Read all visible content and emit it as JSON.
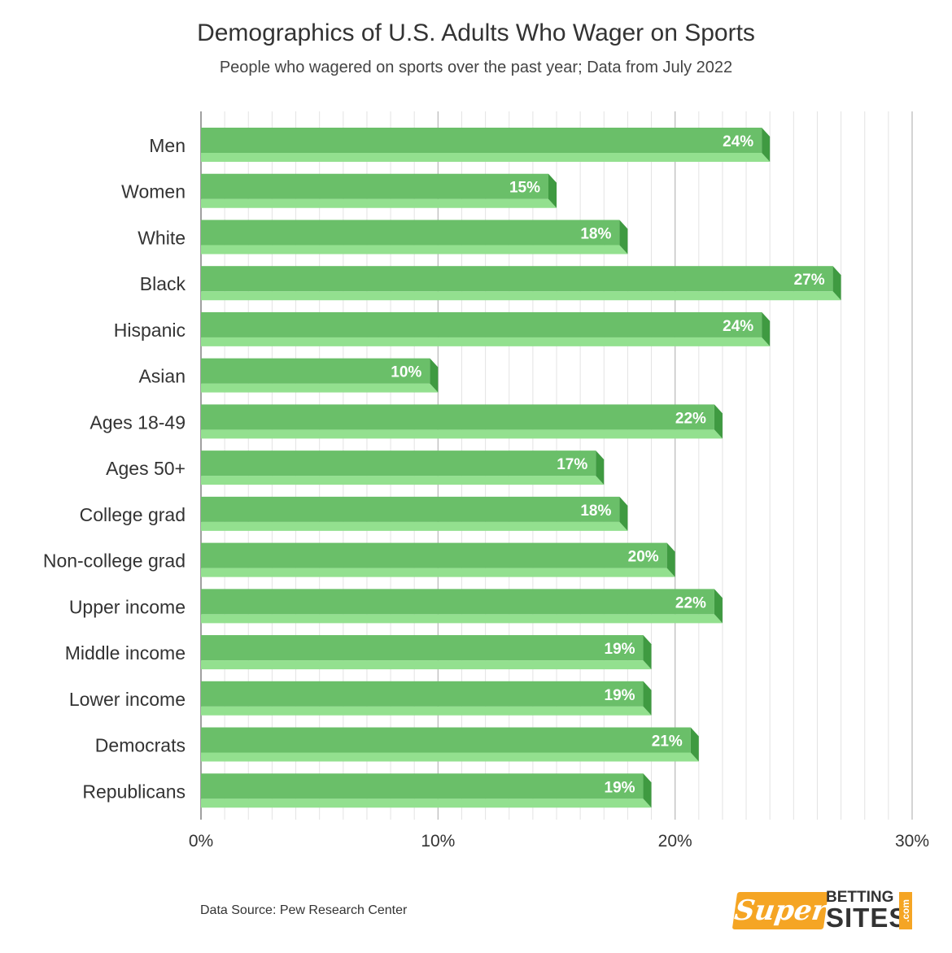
{
  "chart_data": {
    "type": "bar",
    "orientation": "horizontal",
    "title": "Demographics of U.S. Adults Who Wager on Sports",
    "subtitle": "People who wagered on sports over the past year; Data from July 2022",
    "categories": [
      "Men",
      "Women",
      "White",
      "Black",
      "Hispanic",
      "Asian",
      "Ages 18-49",
      "Ages 50+",
      "College grad",
      "Non-college grad",
      "Upper income",
      "Middle income",
      "Lower income",
      "Democrats",
      "Republicans"
    ],
    "values": [
      24,
      15,
      18,
      27,
      24,
      10,
      22,
      17,
      18,
      20,
      22,
      19,
      19,
      21,
      19
    ],
    "value_labels": [
      "24%",
      "15%",
      "18%",
      "27%",
      "24%",
      "10%",
      "22%",
      "17%",
      "18%",
      "20%",
      "22%",
      "19%",
      "19%",
      "21%",
      "19%"
    ],
    "xlim": [
      0,
      30
    ],
    "x_ticks": [
      0,
      10,
      20,
      30
    ],
    "x_tick_labels": [
      "0%",
      "10%",
      "20%",
      "30%"
    ],
    "grid": true,
    "legend": "none"
  },
  "footer": {
    "source": "Data Source: Pew Research Center"
  },
  "logo": {
    "super": "Super",
    "betting": "BETTING",
    "sites": "SITES",
    "com": ".com"
  },
  "colors": {
    "bar_top": "#6abf69",
    "bar_bottom": "#93e08f",
    "bar_end": "#3f9a41",
    "grid_major": "#bdbdbd",
    "grid_minor": "#e3e3e3",
    "logo_orange": "#f5a524"
  }
}
